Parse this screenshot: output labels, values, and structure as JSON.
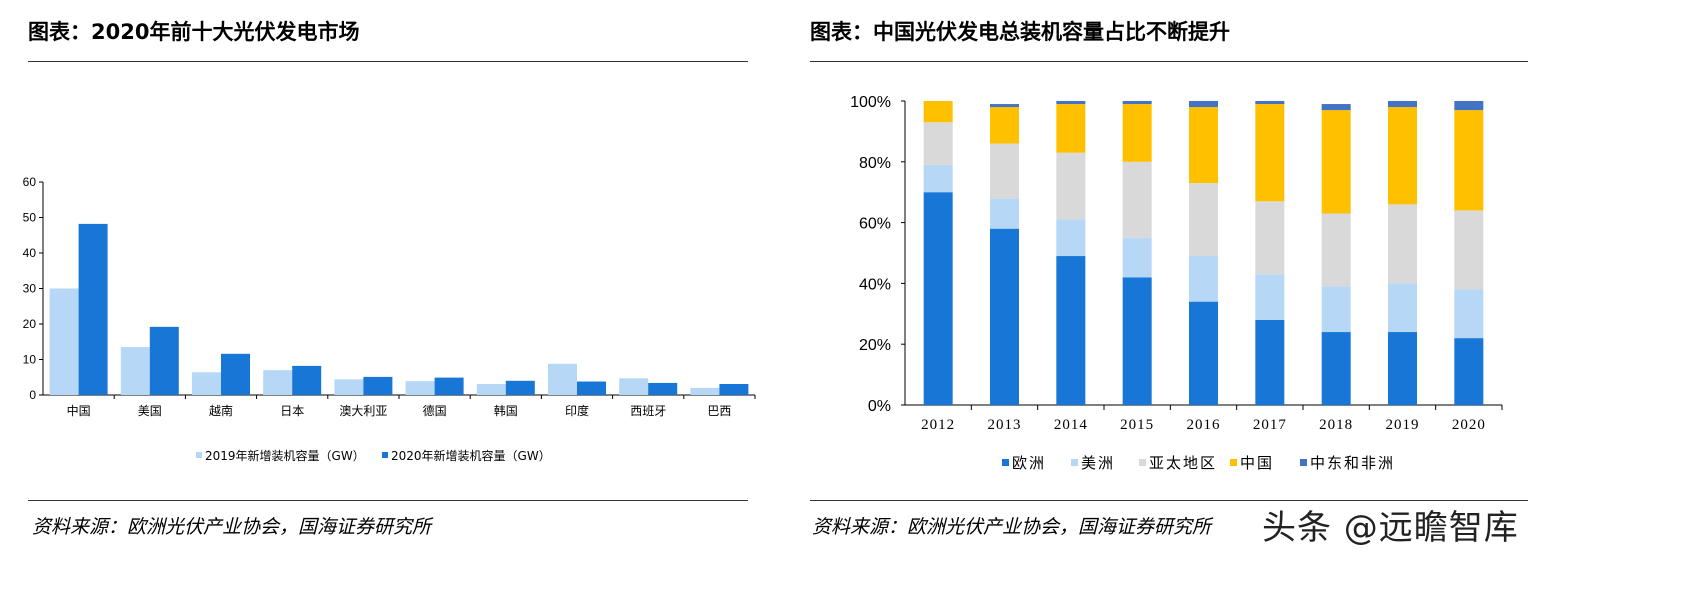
{
  "left": {
    "title": "图表：2020年前十大光伏发电市场",
    "source": "资料来源：欧洲光伏产业协会，国海证券研究所"
  },
  "right": {
    "title": "图表：中国光伏发电总装机容量占比不断提升",
    "source": "资料来源：欧洲光伏产业协会，国海证券研究所"
  },
  "watermark": "头条 @远瞻智库",
  "chart_data": [
    {
      "type": "bar",
      "title": "",
      "categories": [
        "中国",
        "美国",
        "越南",
        "日本",
        "澳大利亚",
        "德国",
        "韩国",
        "印度",
        "西班牙",
        "巴西"
      ],
      "series": [
        {
          "name": "2019年新增装机容量（GW）",
          "color": "#b7d7f7",
          "values": [
            30,
            13.5,
            6.4,
            7.0,
            4.4,
            3.9,
            3.1,
            8.8,
            4.7,
            2.0
          ]
        },
        {
          "name": "2020年新增装机容量（GW）",
          "color": "#1877d6",
          "values": [
            48.2,
            19.2,
            11.6,
            8.2,
            5.1,
            4.9,
            4.0,
            3.8,
            3.4,
            3.1
          ]
        }
      ],
      "ylim": [
        0,
        60
      ],
      "yticks": [
        "0",
        "10",
        "20",
        "30",
        "40",
        "50",
        "60"
      ],
      "legend": "bottom",
      "grid": false
    },
    {
      "type": "bar",
      "stacked": true,
      "title": "",
      "categories": [
        "2012",
        "2013",
        "2014",
        "2015",
        "2016",
        "2017",
        "2018",
        "2019",
        "2020"
      ],
      "series": [
        {
          "name": "欧洲",
          "color": "#1877d6",
          "values": [
            70,
            58,
            49,
            42,
            34,
            28,
            24,
            24,
            22
          ]
        },
        {
          "name": "美洲",
          "color": "#b7d7f7",
          "values": [
            9,
            10,
            12,
            13,
            15,
            15,
            15,
            16,
            16
          ]
        },
        {
          "name": "亚太地区",
          "color": "#d9d9d9",
          "values": [
            14,
            18,
            22,
            25,
            24,
            24,
            24,
            26,
            26
          ]
        },
        {
          "name": "中国",
          "color": "#ffc000",
          "values": [
            7,
            12,
            16,
            19,
            25,
            32,
            34,
            32,
            33
          ]
        },
        {
          "name": "中东和非洲",
          "color": "#4472c4",
          "values": [
            0,
            1,
            1,
            1,
            2,
            1,
            2,
            2,
            3
          ]
        }
      ],
      "ylim": [
        0,
        100
      ],
      "yticks": [
        "0%",
        "20%",
        "40%",
        "60%",
        "80%",
        "100%"
      ],
      "legend": "bottom",
      "grid": false
    }
  ]
}
